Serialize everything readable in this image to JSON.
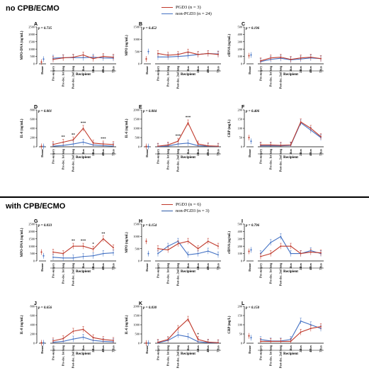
{
  "sections": {
    "top": {
      "title": "no CPB/ECMO",
      "legend": [
        {
          "name": "PGD3 (n = 3)",
          "color": "#c0392b"
        },
        {
          "name": "non-PGD3 (n = 24)",
          "color": "#4472c4"
        }
      ]
    },
    "bottom": {
      "title": "with CPB/ECMO",
      "legend": [
        {
          "name": "PGD3 (n = 6)",
          "color": "#c0392b"
        },
        {
          "name": "non-PGD3 (n = 3)",
          "color": "#2e5aa8"
        }
      ]
    }
  },
  "colors": {
    "pgd3": "#c0392b",
    "non_pgd3": "#4472c4"
  },
  "chart_data": [
    {
      "panel": "A",
      "type": "line",
      "ylabel": "MPO-DNA (ng/mL)",
      "pvalue": "p = 0.735",
      "ylim": [
        0,
        2500
      ],
      "yticks": [
        0,
        500,
        1000,
        1500,
        2000,
        2500
      ],
      "donor": {
        "pgd3": 120,
        "non_pgd3": 320
      },
      "recipient": {
        "pgd3": [
          300,
          400,
          450,
          600,
          350,
          500,
          450
        ],
        "non_pgd3": [
          380,
          420,
          420,
          420,
          450,
          400,
          380
        ]
      },
      "stars": []
    },
    {
      "panel": "B",
      "type": "line",
      "ylabel": "MPO (ng/mL)",
      "pvalue": "p = 0.452",
      "ylim": [
        0,
        1500
      ],
      "yticks": [
        0,
        500,
        1000,
        1500
      ],
      "donor": {
        "pgd3": 200,
        "non_pgd3": 500
      },
      "recipient": {
        "pgd3": [
          420,
          350,
          380,
          480,
          380,
          420,
          380
        ],
        "non_pgd3": [
          280,
          280,
          300,
          330,
          380,
          420,
          400
        ]
      },
      "stars": []
    },
    {
      "panel": "C",
      "type": "line",
      "ylabel": "cfDNA (ng/mL)",
      "pvalue": "p = 0.196",
      "ylim": [
        0,
        500
      ],
      "yticks": [
        0,
        100,
        200,
        300,
        400,
        500
      ],
      "donor": {
        "pgd3": 110,
        "non_pgd3": 120
      },
      "recipient": {
        "pgd3": [
          40,
          80,
          90,
          60,
          80,
          90,
          70
        ],
        "non_pgd3": [
          30,
          60,
          75,
          55,
          65,
          80,
          70
        ]
      },
      "stars": []
    },
    {
      "panel": "D",
      "type": "line",
      "ylabel": "IL-8 (ng/mL)",
      "pvalue": "p = 0.001",
      "ylim": [
        0,
        800
      ],
      "yticks": [
        0,
        200,
        400,
        600,
        800
      ],
      "donor": {
        "pgd3": 10,
        "non_pgd3": 8
      },
      "recipient": {
        "pgd3": [
          50,
          100,
          150,
          400,
          80,
          60,
          50
        ],
        "non_pgd3": [
          15,
          30,
          60,
          100,
          40,
          25,
          15
        ]
      },
      "stars": [
        "",
        "**",
        "**",
        "***",
        "",
        "***",
        ""
      ]
    },
    {
      "panel": "E",
      "type": "line",
      "ylabel": "IL-6 (ng/mL)",
      "pvalue": "p = 0.004",
      "ylim": [
        0,
        2000
      ],
      "yticks": [
        0,
        500,
        1000,
        1500,
        2000
      ],
      "donor": {
        "pgd3": 20,
        "non_pgd3": 15
      },
      "recipient": {
        "pgd3": [
          30,
          100,
          300,
          1300,
          150,
          50,
          30
        ],
        "non_pgd3": [
          10,
          40,
          150,
          200,
          60,
          30,
          20
        ]
      },
      "stars": [
        "",
        "",
        "***",
        "***",
        "",
        "",
        ""
      ]
    },
    {
      "panel": "F",
      "type": "line",
      "ylabel": "CRP (mg/L)",
      "pvalue": "p = 0.406",
      "ylim": [
        0,
        200
      ],
      "yticks": [
        0,
        50,
        100,
        150,
        200
      ],
      "donor": {
        "pgd3": 50,
        "non_pgd3": 30
      },
      "recipient": {
        "pgd3": [
          10,
          10,
          8,
          10,
          135,
          100,
          55
        ],
        "non_pgd3": [
          5,
          5,
          5,
          8,
          130,
          90,
          50
        ]
      },
      "stars": []
    },
    {
      "panel": "G",
      "type": "line",
      "ylabel": "MPO-DNA (ng/mL)",
      "pvalue": "p = 0.033",
      "ylim": [
        0,
        2500
      ],
      "yticks": [
        0,
        500,
        1000,
        1500,
        2000,
        2500
      ],
      "donor": {
        "pgd3": 600,
        "non_pgd3": 350
      },
      "recipient": {
        "pgd3": [
          600,
          500,
          1000,
          1000,
          800,
          1500,
          900
        ],
        "non_pgd3": [
          250,
          200,
          200,
          300,
          350,
          500,
          550
        ]
      },
      "stars": [
        "",
        "",
        "**",
        "***",
        "*",
        "**",
        ""
      ]
    },
    {
      "panel": "H",
      "type": "line",
      "ylabel": "MPO (ng/mL)",
      "pvalue": "p = 0.154",
      "ylim": [
        0,
        1500
      ],
      "yticks": [
        0,
        500,
        1000,
        1500
      ],
      "donor": {
        "pgd3": 800,
        "non_pgd3": 300
      },
      "recipient": {
        "pgd3": [
          500,
          450,
          700,
          800,
          500,
          800,
          600
        ],
        "non_pgd3": [
          300,
          600,
          800,
          250,
          300,
          400,
          250
        ]
      },
      "stars": []
    },
    {
      "panel": "I",
      "type": "line",
      "ylabel": "cfDNA (ng/mL)",
      "pvalue": "p = 0.796",
      "ylim": [
        0,
        500
      ],
      "yticks": [
        0,
        100,
        200,
        300,
        400,
        500
      ],
      "donor": {
        "pgd3": 130,
        "non_pgd3": 150
      },
      "recipient": {
        "pgd3": [
          60,
          100,
          200,
          200,
          100,
          120,
          110
        ],
        "non_pgd3": [
          100,
          250,
          330,
          100,
          100,
          140,
          100
        ]
      },
      "stars": []
    },
    {
      "panel": "J",
      "type": "line",
      "ylabel": "IL-8 (ng/mL)",
      "pvalue": "p = 0.656",
      "ylim": [
        0,
        800
      ],
      "yticks": [
        0,
        200,
        400,
        600,
        800
      ],
      "donor": {
        "pgd3": 10,
        "non_pgd3": 10
      },
      "recipient": {
        "pgd3": [
          50,
          100,
          260,
          300,
          120,
          80,
          60
        ],
        "non_pgd3": [
          20,
          40,
          90,
          130,
          60,
          40,
          30
        ]
      },
      "stars": []
    },
    {
      "panel": "K",
      "type": "line",
      "ylabel": "IL-6 (ng/mL)",
      "pvalue": "p = 0.030",
      "ylim": [
        0,
        2000
      ],
      "yticks": [
        0,
        500,
        1000,
        1500,
        2000
      ],
      "donor": {
        "pgd3": 10,
        "non_pgd3": 10
      },
      "recipient": {
        "pgd3": [
          50,
          200,
          800,
          1300,
          200,
          60,
          30
        ],
        "non_pgd3": [
          20,
          150,
          450,
          350,
          80,
          30,
          20
        ]
      },
      "stars": [
        "",
        "",
        "",
        "",
        "*",
        "",
        ""
      ]
    },
    {
      "panel": "L",
      "type": "line",
      "ylabel": "CRP (mg/L)",
      "pvalue": "p = 0.150",
      "ylim": [
        0,
        200
      ],
      "yticks": [
        0,
        50,
        100,
        150,
        200
      ],
      "donor": {
        "pgd3": 40,
        "non_pgd3": 30
      },
      "recipient": {
        "pgd3": [
          10,
          10,
          10,
          10,
          60,
          80,
          90
        ],
        "non_pgd3": [
          20,
          12,
          12,
          20,
          120,
          100,
          80
        ]
      },
      "stars": []
    }
  ],
  "xaxis": {
    "donor_label": "Donor",
    "recipient_label": "Recipient",
    "recipient_ticks": [
      "Pre-surgery",
      "Pre-dec. 1st lung",
      "Post-dec. 2nd lung",
      "3hrs",
      "24hrs",
      "48hrs",
      "72hrs"
    ]
  }
}
